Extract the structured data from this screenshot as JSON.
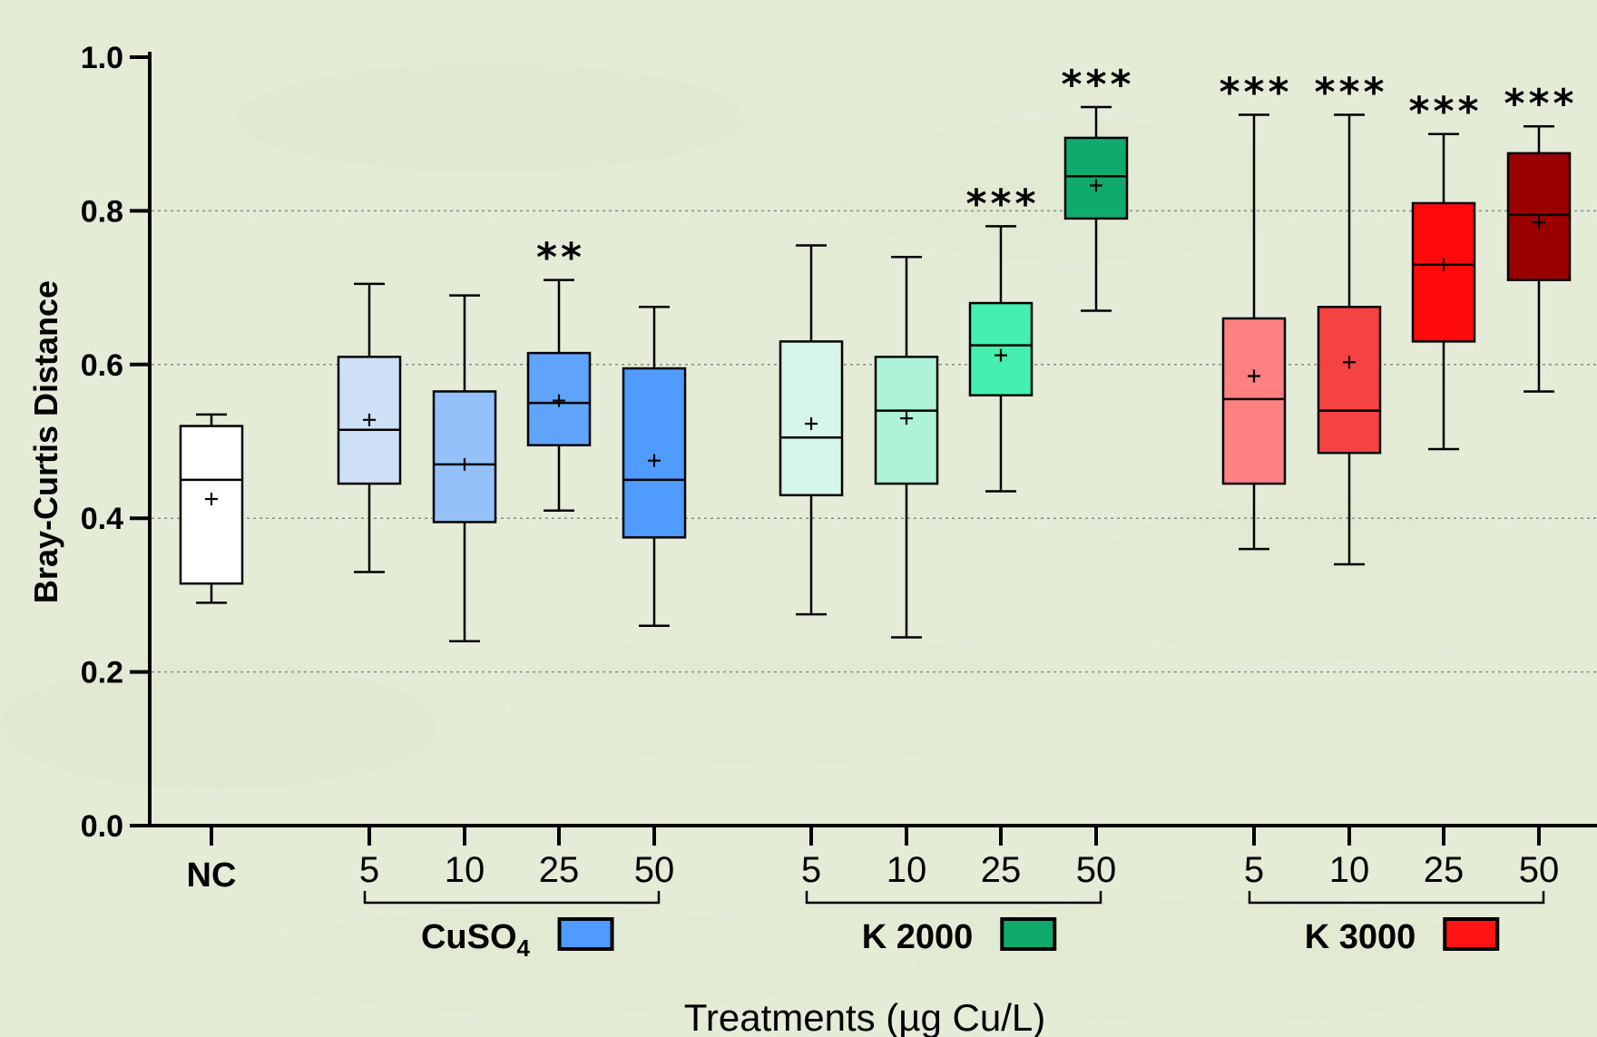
{
  "chart_data": {
    "type": "box",
    "ylabel": "Bray-Curtis Distance",
    "xlabel": "Treatments (µg Cu/L)",
    "ylim": [
      0,
      1.0
    ],
    "yticks": [
      "0.0",
      "0.2",
      "0.4",
      "0.6",
      "0.8",
      "1.0"
    ],
    "grid": "horizontal dotted at 0.2, 0.4, 0.6, 0.8",
    "groups": [
      {
        "name": "",
        "label": "NC",
        "color": "#ffffff",
        "boxes": [
          {
            "label": "NC",
            "min": 0.29,
            "q1": 0.315,
            "median": 0.45,
            "q3": 0.52,
            "max": 0.535,
            "mean": 0.425,
            "sig": "",
            "color": "#ffffff"
          }
        ]
      },
      {
        "name": "CuSO",
        "name_sub": "4",
        "color": "#4f9bff",
        "boxes": [
          {
            "label": "5",
            "min": 0.33,
            "q1": 0.445,
            "median": 0.515,
            "q3": 0.61,
            "max": 0.705,
            "mean": 0.528,
            "sig": "",
            "color": "#cde0f5"
          },
          {
            "label": "10",
            "min": 0.24,
            "q1": 0.395,
            "median": 0.47,
            "q3": 0.565,
            "max": 0.69,
            "mean": 0.47,
            "sig": "",
            "color": "#95c1fb"
          },
          {
            "label": "25",
            "min": 0.41,
            "q1": 0.495,
            "median": 0.55,
            "q3": 0.615,
            "max": 0.71,
            "mean": 0.553,
            "sig": "**",
            "color": "#5fa4fa"
          },
          {
            "label": "50",
            "min": 0.26,
            "q1": 0.375,
            "median": 0.45,
            "q3": 0.595,
            "max": 0.675,
            "mean": 0.475,
            "sig": "",
            "color": "#4f9bff"
          }
        ]
      },
      {
        "name": "K 2000",
        "color": "#0faa6c",
        "boxes": [
          {
            "label": "5",
            "min": 0.275,
            "q1": 0.43,
            "median": 0.505,
            "q3": 0.63,
            "max": 0.755,
            "mean": 0.523,
            "sig": "",
            "color": "#d6f6ea"
          },
          {
            "label": "10",
            "min": 0.245,
            "q1": 0.445,
            "median": 0.54,
            "q3": 0.61,
            "max": 0.74,
            "mean": 0.53,
            "sig": "",
            "color": "#aef3d8"
          },
          {
            "label": "25",
            "min": 0.435,
            "q1": 0.56,
            "median": 0.625,
            "q3": 0.68,
            "max": 0.78,
            "mean": 0.612,
            "sig": "***",
            "color": "#44efb0"
          },
          {
            "label": "50",
            "min": 0.67,
            "q1": 0.79,
            "median": 0.845,
            "q3": 0.895,
            "max": 0.935,
            "mean": 0.833,
            "sig": "***",
            "color": "#0faa6c"
          }
        ]
      },
      {
        "name": "K 3000",
        "color": "#ff1414",
        "boxes": [
          {
            "label": "5",
            "min": 0.36,
            "q1": 0.445,
            "median": 0.555,
            "q3": 0.66,
            "max": 0.925,
            "mean": 0.585,
            "sig": "***",
            "color": "#ff8080"
          },
          {
            "label": "10",
            "min": 0.34,
            "q1": 0.485,
            "median": 0.54,
            "q3": 0.675,
            "max": 0.925,
            "mean": 0.603,
            "sig": "***",
            "color": "#f54242"
          },
          {
            "label": "25",
            "min": 0.49,
            "q1": 0.63,
            "median": 0.73,
            "q3": 0.81,
            "max": 0.9,
            "mean": 0.73,
            "sig": "***",
            "color": "#ff0a0a"
          },
          {
            "label": "50",
            "min": 0.565,
            "q1": 0.71,
            "median": 0.795,
            "q3": 0.875,
            "max": 0.91,
            "mean": 0.785,
            "sig": "***",
            "color": "#9a0000"
          }
        ]
      }
    ]
  }
}
